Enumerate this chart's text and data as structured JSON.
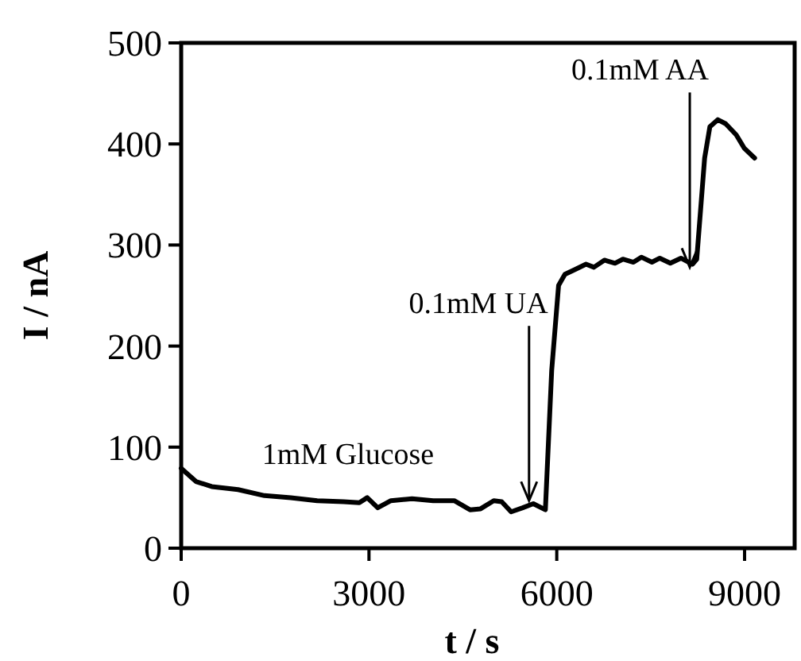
{
  "chart_data": {
    "type": "line",
    "xlabel": "t / s",
    "ylabel": "I / nA",
    "xlim": [
      0,
      9800
    ],
    "ylim": [
      0,
      500
    ],
    "xticks": [
      0,
      3000,
      6000,
      9000
    ],
    "yticks": [
      0,
      100,
      200,
      300,
      400,
      500
    ],
    "grid": false,
    "marker": "none",
    "line_style": "solid",
    "annotations": [
      "1mM Glucose",
      {
        "text": "0.1mM UA",
        "x": 5557,
        "y": 47
      },
      {
        "text": "0.1mM AA",
        "x": 8125,
        "y": 278
      }
    ],
    "series": [
      {
        "color": "#000000",
        "x": [
          0,
          236,
          488,
          909,
          1330,
          1751,
          2172,
          2593,
          2846,
          2972,
          3140,
          3351,
          3688,
          4025,
          4362,
          4614,
          4783,
          4993,
          5120,
          5271,
          5456,
          5625,
          5818,
          5919,
          6029,
          6130,
          6298,
          6467,
          6593,
          6761,
          6930,
          7056,
          7225,
          7351,
          7520,
          7646,
          7814,
          7983,
          8168,
          8236,
          8362,
          8446,
          8572,
          8698,
          8867,
          8993,
          9161
        ],
        "values": [
          79,
          66,
          61,
          58,
          52,
          50,
          47,
          46,
          45,
          50,
          40,
          47,
          49,
          47,
          47,
          38,
          39,
          47,
          46,
          36,
          40,
          44,
          38,
          176,
          260,
          271,
          276,
          281,
          278,
          285,
          282,
          286,
          283,
          288,
          283,
          287,
          282,
          287,
          281,
          286,
          386,
          417,
          424,
          420,
          409,
          396,
          386
        ]
      }
    ]
  }
}
